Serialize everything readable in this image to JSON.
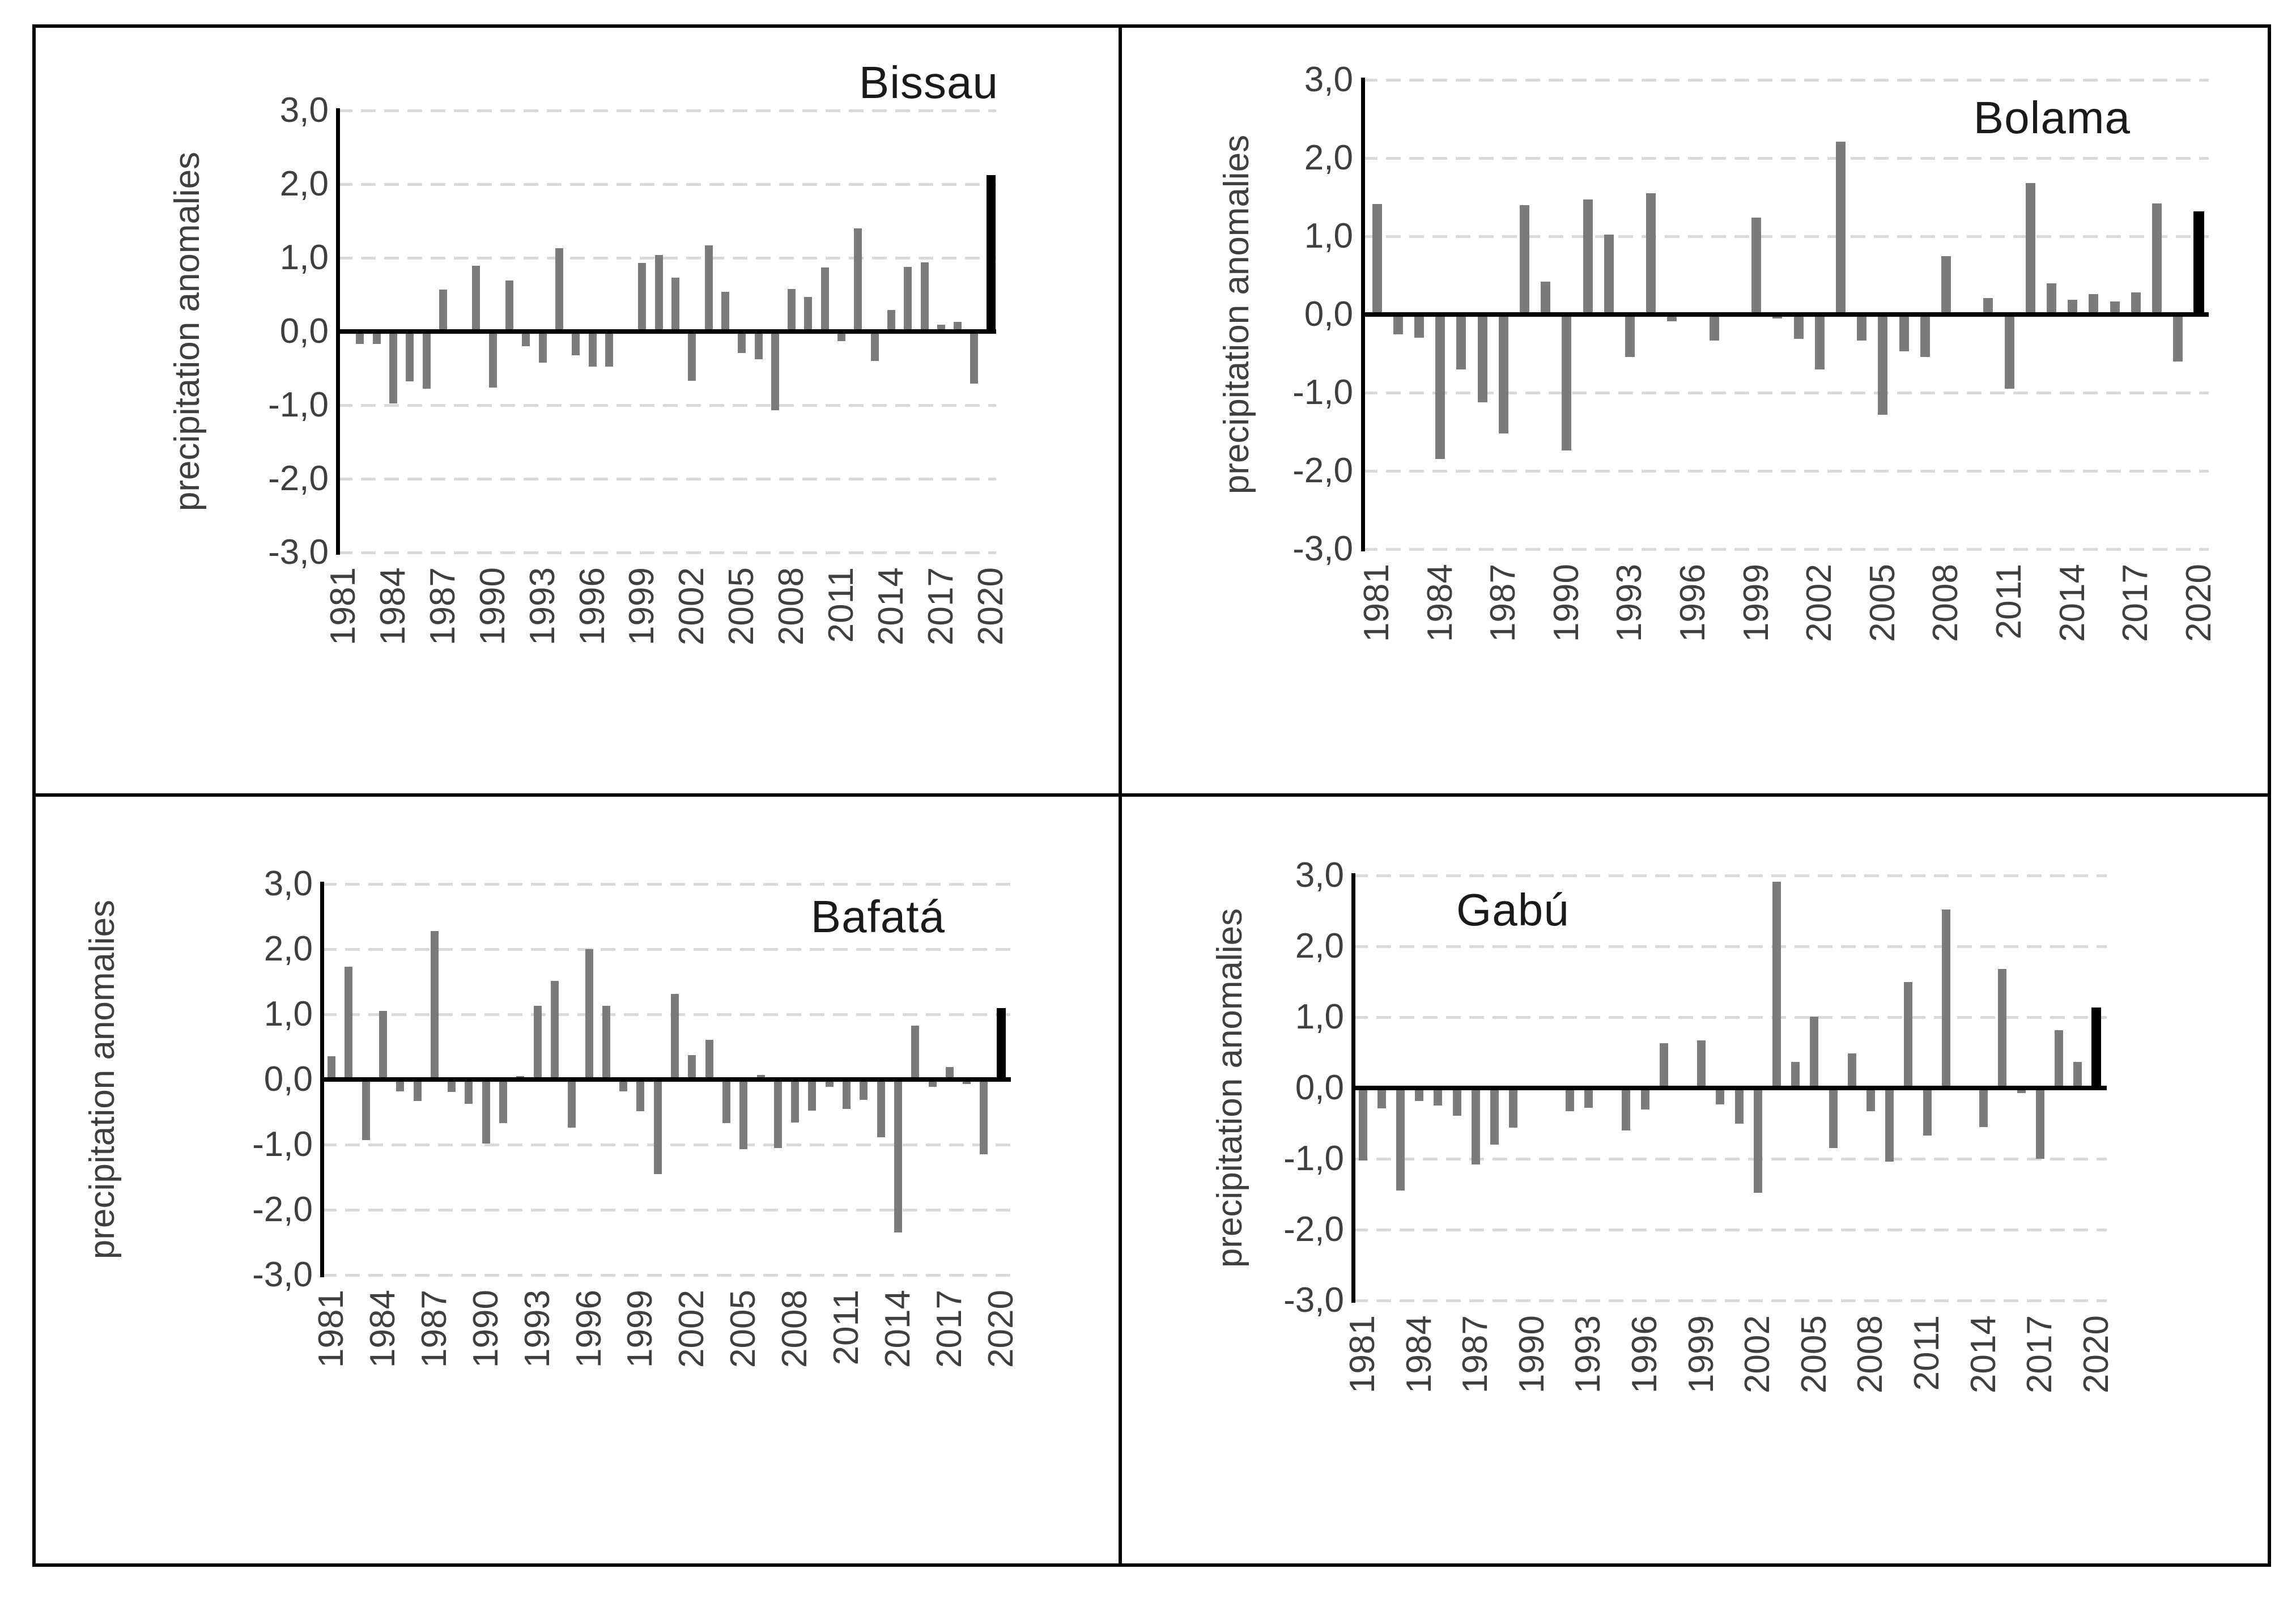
{
  "figure": {
    "background_color": "#ffffff",
    "border_color": "#000000",
    "layout": "2x2 grid of bar charts"
  },
  "colors": {
    "bar": "#7b7b7b",
    "highlight_bar": "#000000",
    "gridline": "#d9d9d9",
    "axis": "#000000",
    "tick_text": "#3f3f3f",
    "title_text": "#1a1a1a"
  },
  "chart_data": [
    {
      "type": "bar",
      "title": "Bissau",
      "title_position": "top-right",
      "ylabel": "precipitation anomalies",
      "ylim": [
        -3.0,
        3.0
      ],
      "grid": "horizontal dashed at -3,-2,-1,1,2,3; solid black zero axis",
      "legend": "none",
      "y_tick_labels": [
        "3,0",
        "2,0",
        "1,0",
        "0,0",
        "-1,0",
        "-2,0",
        "-3,0"
      ],
      "x_tick_labels": [
        "1981",
        "1984",
        "1987",
        "1990",
        "1993",
        "1996",
        "1999",
        "2002",
        "2005",
        "2008",
        "2011",
        "2014",
        "2017",
        "2020"
      ],
      "years": [
        1981,
        1982,
        1983,
        1984,
        1985,
        1986,
        1987,
        1988,
        1989,
        1990,
        1991,
        1992,
        1993,
        1994,
        1995,
        1996,
        1997,
        1998,
        1999,
        2000,
        2001,
        2002,
        2003,
        2004,
        2005,
        2006,
        2007,
        2008,
        2009,
        2010,
        2011,
        2012,
        2013,
        2014,
        2015,
        2016,
        2017,
        2018,
        2019,
        2020
      ],
      "values": [
        0,
        -0.17,
        -0.17,
        -0.98,
        -0.68,
        -0.78,
        0.57,
        0.03,
        0.89,
        -0.76,
        0.69,
        -0.2,
        -0.42,
        1.13,
        -0.32,
        -0.48,
        -0.48,
        0,
        0.93,
        1.04,
        0.73,
        -0.67,
        1.17,
        0.54,
        -0.29,
        -0.38,
        -1.07,
        0.58,
        0.47,
        0.87,
        -0.13,
        1.4,
        -0.4,
        0.29,
        0.88,
        0.94,
        0.09,
        0.13,
        -0.71,
        2.12
      ],
      "highlight_year": 2020
    },
    {
      "type": "bar",
      "title": "Bolama",
      "title_position": "top-right",
      "ylabel": "precipitation anomalies",
      "ylim": [
        -3.0,
        3.0
      ],
      "grid": "horizontal dashed at -3,-2,-1,1,2,3; solid black zero axis",
      "legend": "none",
      "y_tick_labels": [
        "3,0",
        "2,0",
        "1,0",
        "0,0",
        "-1,0",
        "-2,0",
        "-3,0"
      ],
      "x_tick_labels": [
        "1981",
        "1984",
        "1987",
        "1990",
        "1993",
        "1996",
        "1999",
        "2002",
        "2005",
        "2008",
        "2011",
        "2014",
        "2017",
        "2020"
      ],
      "years": [
        1981,
        1982,
        1983,
        1984,
        1985,
        1986,
        1987,
        1988,
        1989,
        1990,
        1991,
        1992,
        1993,
        1994,
        1995,
        1996,
        1997,
        1998,
        1999,
        2000,
        2001,
        2002,
        2003,
        2004,
        2005,
        2006,
        2007,
        2008,
        2009,
        2010,
        2011,
        2012,
        2013,
        2014,
        2015,
        2016,
        2017,
        2018,
        2019,
        2020
      ],
      "values": [
        1.41,
        -0.25,
        -0.3,
        -1.85,
        -0.7,
        -1.12,
        -1.52,
        1.4,
        0.42,
        -1.74,
        1.47,
        1.02,
        -0.54,
        1.55,
        -0.09,
        0,
        -0.33,
        0.03,
        1.24,
        -0.05,
        -0.31,
        -0.7,
        2.21,
        -0.33,
        -1.28,
        -0.47,
        -0.54,
        0.75,
        0,
        0.21,
        -0.95,
        1.68,
        0.4,
        0.19,
        0.26,
        0.17,
        0.28,
        1.42,
        -0.6,
        1.32
      ],
      "highlight_year": 2020
    },
    {
      "type": "bar",
      "title": "Bafatá",
      "title_position": "top-right",
      "ylabel": "precipitation anomalies",
      "ylim": [
        -3.0,
        3.0
      ],
      "grid": "horizontal dashed at -3,-2,-1,1,2,3; solid black zero axis",
      "legend": "none",
      "y_tick_labels": [
        "3,0",
        "2,0",
        "1,0",
        "0,0",
        "-1,0",
        "-2,0",
        "-3,0"
      ],
      "x_tick_labels": [
        "1981",
        "1984",
        "1987",
        "1990",
        "1993",
        "1996",
        "1999",
        "2002",
        "2005",
        "2008",
        "2011",
        "2014",
        "2017",
        "2020"
      ],
      "years": [
        1981,
        1982,
        1983,
        1984,
        1985,
        1986,
        1987,
        1988,
        1989,
        1990,
        1991,
        1992,
        1993,
        1994,
        1995,
        1996,
        1997,
        1998,
        1999,
        2000,
        2001,
        2002,
        2003,
        2004,
        2005,
        2006,
        2007,
        2008,
        2009,
        2010,
        2011,
        2012,
        2013,
        2014,
        2015,
        2016,
        2017,
        2018,
        2019,
        2020
      ],
      "values": [
        0.36,
        1.73,
        -0.93,
        1.05,
        -0.18,
        -0.33,
        2.28,
        -0.19,
        -0.37,
        -0.98,
        -0.67,
        0.05,
        1.13,
        1.51,
        -0.74,
        2.0,
        1.13,
        -0.18,
        -0.49,
        -1.45,
        1.31,
        0.37,
        0.61,
        -0.67,
        -1.07,
        0.07,
        -1.05,
        -0.66,
        -0.48,
        -0.11,
        -0.45,
        -0.31,
        -0.89,
        -2.35,
        0.83,
        -0.11,
        0.19,
        -0.07,
        -1.15,
        1.1
      ],
      "highlight_year": 2020
    },
    {
      "type": "bar",
      "title": "Gabú",
      "title_position": "top-left",
      "ylabel": "precipitation anomalies",
      "ylim": [
        -3.0,
        3.0
      ],
      "grid": "horizontal dashed at -3,-2,-1,1,2,3; solid black zero axis",
      "legend": "none",
      "y_tick_labels": [
        "3,0",
        "2,0",
        "1,0",
        "0,0",
        "-1,0",
        "-2,0",
        "-3,0"
      ],
      "x_tick_labels": [
        "1981",
        "1984",
        "1987",
        "1990",
        "1993",
        "1996",
        "1999",
        "2002",
        "2005",
        "2008",
        "2011",
        "2014",
        "2017",
        "2020"
      ],
      "years": [
        1981,
        1982,
        1983,
        1984,
        1985,
        1986,
        1987,
        1988,
        1989,
        1990,
        1991,
        1992,
        1993,
        1994,
        1995,
        1996,
        1997,
        1998,
        1999,
        2000,
        2001,
        2002,
        2003,
        2004,
        2005,
        2006,
        2007,
        2008,
        2009,
        2010,
        2011,
        2012,
        2013,
        2014,
        2015,
        2016,
        2017,
        2018,
        2019,
        2020
      ],
      "values": [
        -1.02,
        -0.29,
        -1.45,
        -0.18,
        -0.25,
        -0.39,
        -1.08,
        -0.8,
        -0.56,
        0,
        0,
        -0.33,
        -0.28,
        0,
        -0.6,
        -0.3,
        0.63,
        0,
        0.67,
        -0.23,
        -0.5,
        -1.48,
        2.91,
        0.37,
        1.01,
        -0.85,
        0.49,
        -0.33,
        -1.04,
        1.5,
        -0.67,
        2.52,
        0,
        -0.55,
        1.68,
        -0.07,
        -1.0,
        0.82,
        0.37,
        1.14
      ],
      "highlight_year": 2020
    }
  ]
}
